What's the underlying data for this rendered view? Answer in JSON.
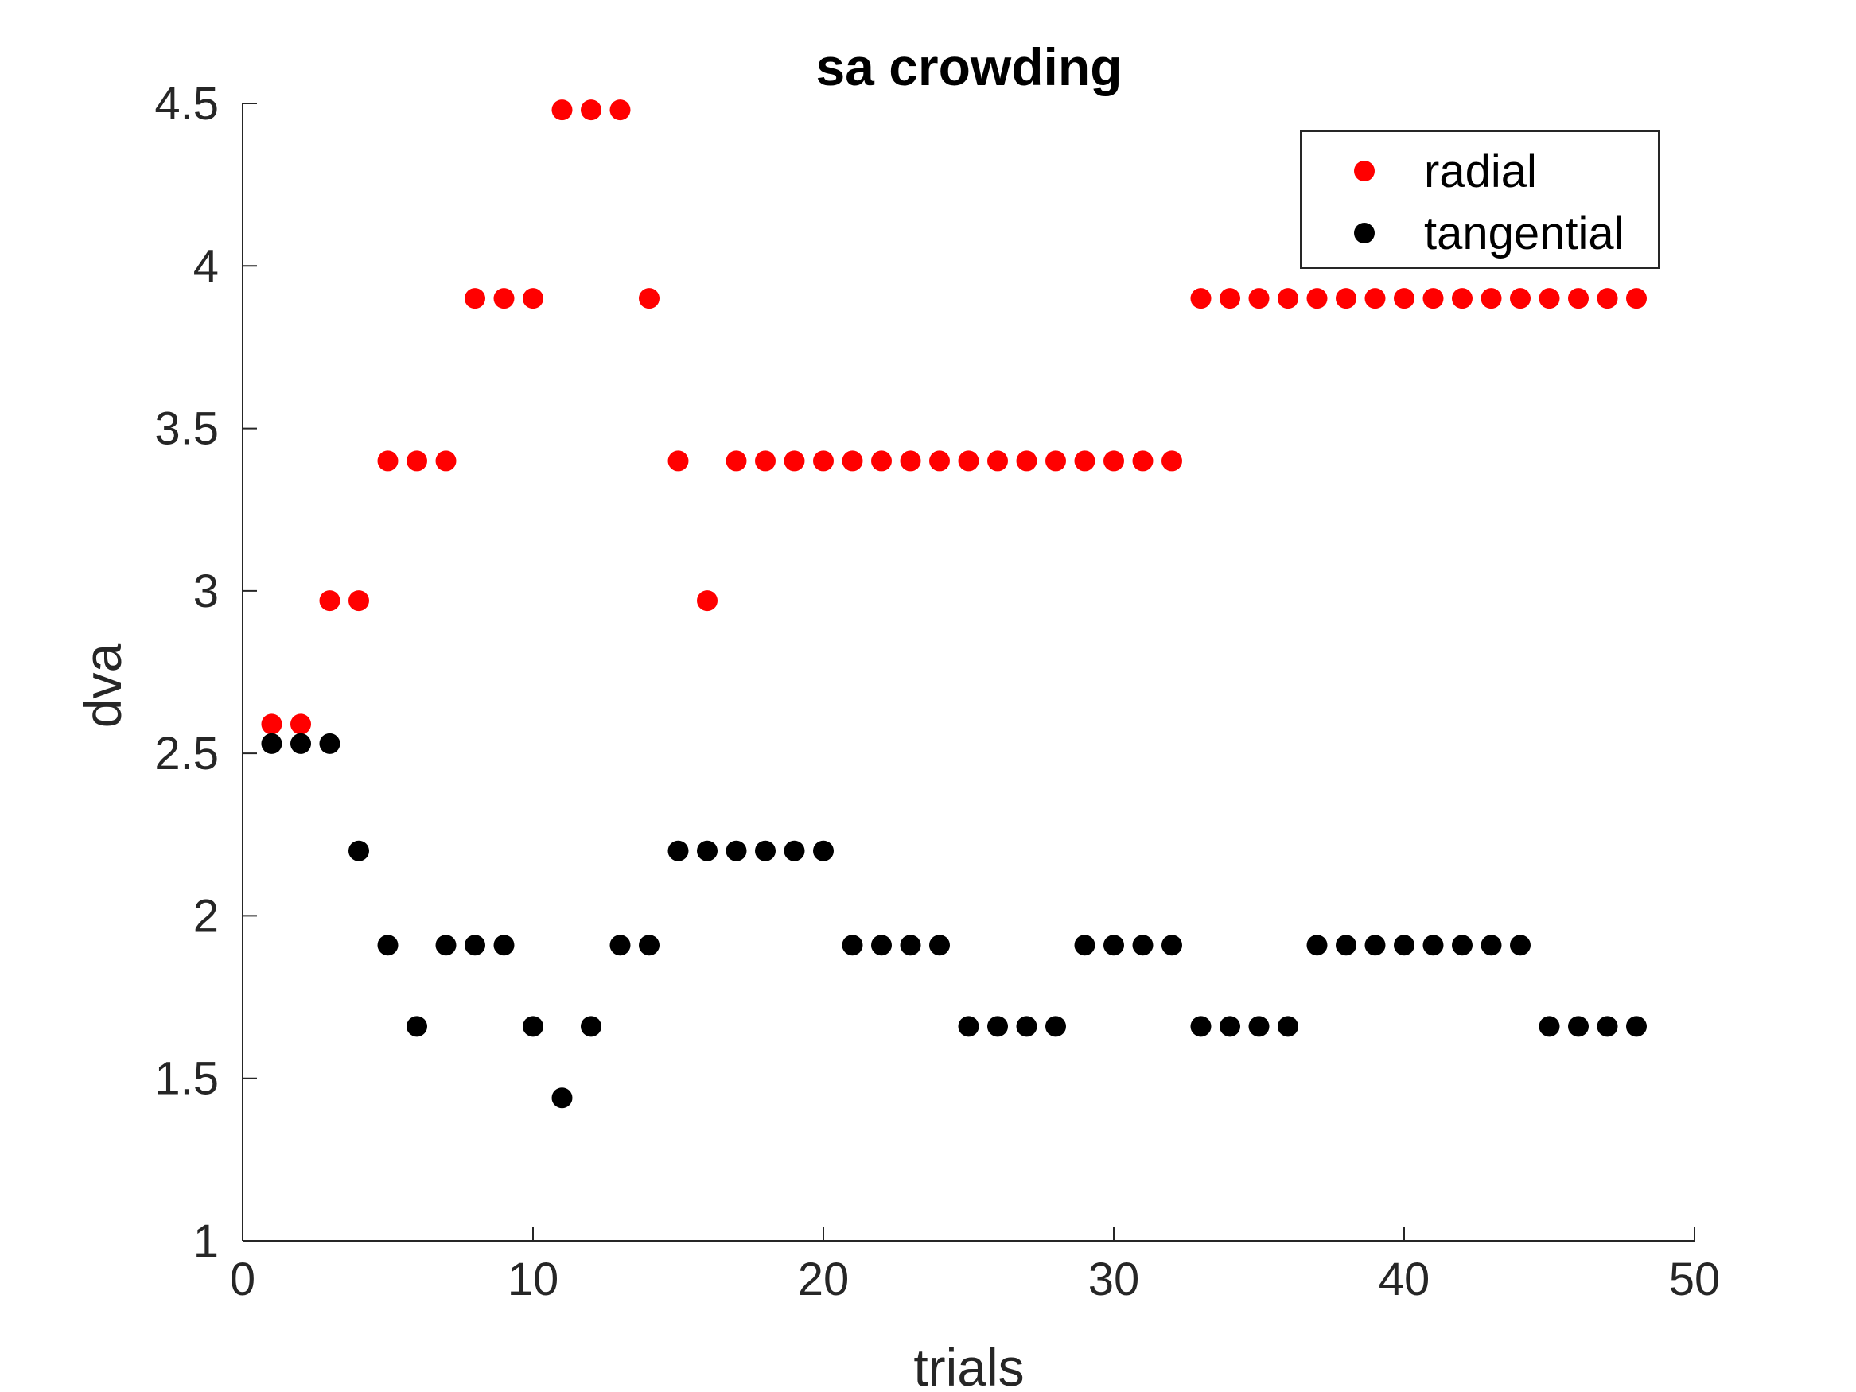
{
  "chart_data": {
    "type": "scatter",
    "title": "sa crowding",
    "xlabel": "trials",
    "ylabel": "dva",
    "xlim": [
      0,
      50
    ],
    "ylim": [
      1,
      4.5
    ],
    "xticks": [
      0,
      10,
      20,
      30,
      40,
      50
    ],
    "xtick_labels": [
      "0",
      "10",
      "20",
      "30",
      "40",
      "50"
    ],
    "yticks": [
      1,
      1.5,
      2,
      2.5,
      3,
      3.5,
      4,
      4.5
    ],
    "ytick_labels": [
      "1",
      "1.5",
      "2",
      "2.5",
      "3",
      "3.5",
      "4",
      "4.5"
    ],
    "grid": false,
    "legend_position": "top-right",
    "x": [
      1,
      2,
      3,
      4,
      5,
      6,
      7,
      8,
      9,
      10,
      11,
      12,
      13,
      14,
      15,
      16,
      17,
      18,
      19,
      20,
      21,
      22,
      23,
      24,
      25,
      26,
      27,
      28,
      29,
      30,
      31,
      32,
      33,
      34,
      35,
      36,
      37,
      38,
      39,
      40,
      41,
      42,
      43,
      44,
      45,
      46,
      47,
      48
    ],
    "series": [
      {
        "name": "radial",
        "color": "#ff0000",
        "values": [
          2.59,
          2.59,
          2.97,
          2.97,
          3.4,
          3.4,
          3.4,
          3.9,
          3.9,
          3.9,
          4.48,
          4.48,
          4.48,
          3.9,
          3.4,
          2.97,
          3.4,
          3.4,
          3.4,
          3.4,
          3.4,
          3.4,
          3.4,
          3.4,
          3.4,
          3.4,
          3.4,
          3.4,
          3.4,
          3.4,
          3.4,
          3.4,
          3.9,
          3.9,
          3.9,
          3.9,
          3.9,
          3.9,
          3.9,
          3.9,
          3.9,
          3.9,
          3.9,
          3.9,
          3.9,
          3.9,
          3.9,
          3.9
        ]
      },
      {
        "name": "tangential",
        "color": "#000000",
        "values": [
          2.53,
          2.53,
          2.53,
          2.2,
          1.91,
          1.66,
          1.91,
          1.91,
          1.91,
          1.66,
          1.44,
          1.66,
          1.91,
          1.91,
          2.2,
          2.2,
          2.2,
          2.2,
          2.2,
          2.2,
          1.91,
          1.91,
          1.91,
          1.91,
          1.66,
          1.66,
          1.66,
          1.66,
          1.91,
          1.91,
          1.91,
          1.91,
          1.66,
          1.66,
          1.66,
          1.66,
          1.91,
          1.91,
          1.91,
          1.91,
          1.91,
          1.91,
          1.91,
          1.91,
          1.66,
          1.66,
          1.66,
          1.66
        ]
      }
    ]
  }
}
